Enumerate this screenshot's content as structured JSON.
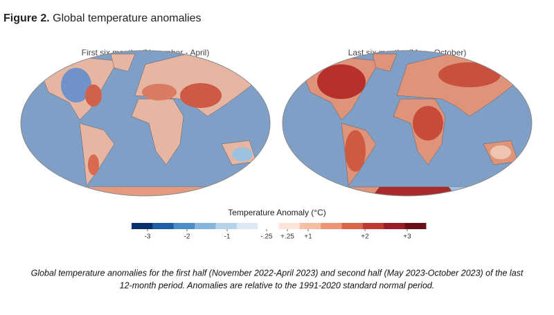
{
  "figure_label": "Figure 2.",
  "title": "Global temperature anomalies",
  "panels": [
    {
      "title": "First six months (November - April)"
    },
    {
      "title": "Last six months (May - October)"
    }
  ],
  "legend": {
    "title": "Temperature Anomaly (°C)",
    "colors": [
      "#08306b",
      "#1f5fa5",
      "#4a8cc7",
      "#86b6dc",
      "#b6d3ea",
      "#dce9f4",
      "#ffffff",
      "#fde4d8",
      "#f6bfa5",
      "#ec9676",
      "#d9654b",
      "#bf3a32",
      "#9c1d26",
      "#6b0f1b"
    ],
    "ticks": [
      -3,
      -2,
      -1,
      {
        "value": -0.25,
        "label": "-.25"
      },
      {
        "value": 0.25,
        "label": "+.25"
      },
      {
        "value": 1,
        "label": "+1"
      },
      {
        "value": 2,
        "label": "+2"
      },
      {
        "value": 3,
        "label": "+3"
      }
    ]
  },
  "caption": [
    "Global temperature anomalies for the first half (November 2022-April 2023) and second half (May 2023-October 2023) of the last",
    "12-month period. Anomalies are relative to the 1991-2020 standard normal period."
  ]
}
